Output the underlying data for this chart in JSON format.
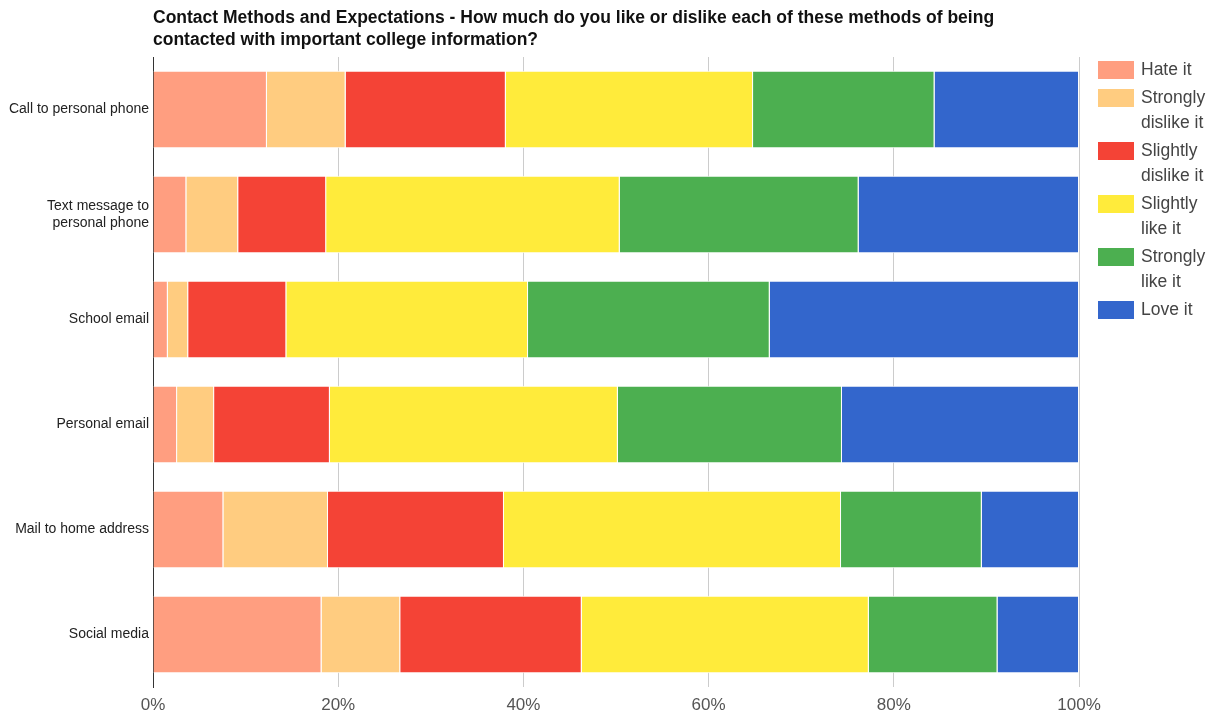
{
  "chart_data": {
    "type": "bar",
    "orientation": "horizontal",
    "stacked": true,
    "title": "Contact Methods and Expectations - How much do you like or dislike each of these methods of being contacted with important college information?",
    "categories": [
      "Call to personal phone",
      "Text message to personal phone",
      "School email",
      "Personal email",
      "Mail to home address",
      "Social media"
    ],
    "series": [
      {
        "name": "Hate it",
        "color": "#ff9e80",
        "values": [
          12.3,
          3.6,
          1.6,
          2.6,
          7.6,
          18.2
        ]
      },
      {
        "name": "Strongly dislike it",
        "color": "#ffcc80",
        "values": [
          8.5,
          5.6,
          2.2,
          4.0,
          11.3,
          8.5
        ]
      },
      {
        "name": "Slightly dislike it",
        "color": "#f44336",
        "values": [
          17.3,
          9.5,
          10.6,
          12.5,
          19.0,
          19.6
        ]
      },
      {
        "name": "Slightly like it",
        "color": "#ffeb3b",
        "values": [
          26.7,
          31.7,
          26.1,
          31.1,
          36.4,
          31.0
        ]
      },
      {
        "name": "Strongly like it",
        "color": "#4caf50",
        "values": [
          19.6,
          25.8,
          26.1,
          24.2,
          15.2,
          13.9
        ]
      },
      {
        "name": "Love it",
        "color": "#3366cc",
        "values": [
          15.6,
          23.8,
          33.4,
          25.6,
          10.5,
          8.8
        ]
      }
    ],
    "xlim": [
      0,
      100
    ],
    "xticks": [
      {
        "value": 0,
        "label": "0%"
      },
      {
        "value": 20,
        "label": "20%"
      },
      {
        "value": 40,
        "label": "40%"
      },
      {
        "value": 60,
        "label": "60%"
      },
      {
        "value": 80,
        "label": "80%"
      },
      {
        "value": 100,
        "label": "100%"
      }
    ],
    "grid": "x",
    "legend": "right"
  }
}
